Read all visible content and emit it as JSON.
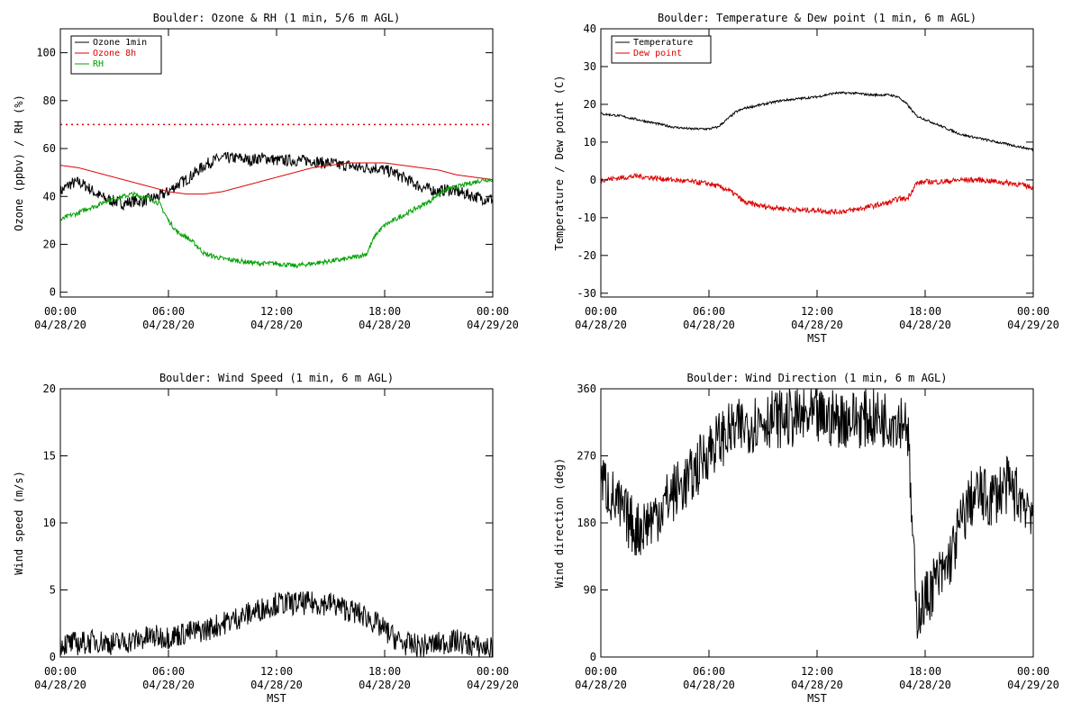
{
  "colors": {
    "ozone_1min": "#000000",
    "ozone_8h": "#dd0000",
    "rh": "#00a000",
    "temperature": "#000000",
    "dew_point": "#dd0000",
    "reference_line": "#dd0000"
  },
  "chart_data": [
    {
      "type": "line",
      "title": "Boulder: Ozone & RH (1 min, 5/6 m AGL)",
      "xlabel": "",
      "ylabel": "Ozone (ppbv) / RH (%)",
      "xlim": [
        0,
        24
      ],
      "ylim": [
        -2,
        110
      ],
      "yticks": [
        0,
        20,
        40,
        60,
        80,
        100
      ],
      "xticks": [
        {
          "value": 0,
          "time": "00:00",
          "date": "04/28/20"
        },
        {
          "value": 6,
          "time": "06:00",
          "date": "04/28/20"
        },
        {
          "value": 12,
          "time": "12:00",
          "date": "04/28/20"
        },
        {
          "value": 18,
          "time": "18:00",
          "date": "04/28/20"
        },
        {
          "value": 24,
          "time": "00:00",
          "date": "04/29/20"
        }
      ],
      "legend": "top-left",
      "reference_line": {
        "y": 70,
        "style": "dotted"
      },
      "series": [
        {
          "name": "Ozone 1min",
          "color": "#000000",
          "noise": 2.5,
          "x": [
            0,
            0.5,
            1,
            1.5,
            2,
            2.5,
            3,
            3.5,
            4,
            4.5,
            5,
            5.5,
            6,
            6.5,
            7,
            7.5,
            8,
            8.5,
            9,
            9.5,
            10,
            10.5,
            11,
            11.5,
            12,
            12.5,
            13,
            13.5,
            14,
            14.5,
            15,
            15.5,
            16,
            16.5,
            17,
            17.5,
            18,
            18.5,
            19,
            19.5,
            20,
            20.5,
            21,
            21.5,
            22,
            22.5,
            23,
            23.5,
            24
          ],
          "values": [
            42,
            45,
            46,
            44,
            41,
            39,
            38,
            37,
            38,
            38,
            39,
            40,
            42,
            45,
            47,
            50,
            53,
            55,
            56,
            56,
            56,
            55,
            56,
            56,
            55,
            55,
            55,
            55,
            55,
            54,
            54,
            53,
            53,
            52,
            52,
            52,
            51,
            50,
            48,
            46,
            44,
            43,
            42,
            43,
            42,
            41,
            40,
            39,
            39
          ]
        },
        {
          "name": "Ozone 8h",
          "color": "#dd0000",
          "noise": 0,
          "x": [
            0,
            1,
            2,
            3,
            4,
            5,
            6,
            7,
            8,
            9,
            10,
            11,
            12,
            13,
            14,
            15,
            16,
            17,
            18,
            19,
            20,
            21,
            22,
            23,
            24
          ],
          "values": [
            53,
            52,
            50,
            48,
            46,
            44,
            42,
            41,
            41,
            42,
            44,
            46,
            48,
            50,
            52,
            53,
            54,
            54,
            54,
            53,
            52,
            51,
            49,
            48,
            47
          ]
        },
        {
          "name": "RH",
          "color": "#00a000",
          "noise": 1,
          "x": [
            0,
            0.5,
            1,
            1.5,
            2,
            2.5,
            3,
            3.5,
            4,
            4.5,
            5,
            5.5,
            6,
            6.5,
            7,
            7.5,
            8,
            8.5,
            9,
            10,
            11,
            12,
            13,
            14,
            15,
            16,
            16.5,
            17,
            17.5,
            18,
            18.5,
            19,
            19.5,
            20,
            20.5,
            21,
            21.5,
            22,
            22.5,
            23,
            23.5,
            24
          ],
          "values": [
            30,
            32,
            33,
            35,
            36,
            38,
            39,
            40,
            41,
            40,
            39,
            37,
            30,
            25,
            23,
            20,
            16,
            15,
            14,
            13,
            12,
            12,
            11,
            12,
            13,
            14,
            15,
            16,
            24,
            28,
            30,
            32,
            34,
            36,
            38,
            41,
            43,
            44,
            45,
            46,
            47,
            47
          ]
        }
      ]
    },
    {
      "type": "line",
      "title": "Boulder: Temperature & Dew point (1 min, 6 m AGL)",
      "xlabel": "MST",
      "ylabel": "Temperature / Dew point (C)",
      "xlim": [
        0,
        24
      ],
      "ylim": [
        -31,
        40
      ],
      "yticks": [
        -30,
        -20,
        -10,
        0,
        10,
        20,
        30,
        40
      ],
      "xticks": [
        {
          "value": 0,
          "time": "00:00",
          "date": "04/28/20"
        },
        {
          "value": 6,
          "time": "06:00",
          "date": "04/28/20"
        },
        {
          "value": 12,
          "time": "12:00",
          "date": "04/28/20"
        },
        {
          "value": 18,
          "time": "18:00",
          "date": "04/28/20"
        },
        {
          "value": 24,
          "time": "00:00",
          "date": "04/29/20"
        }
      ],
      "legend": "top-left",
      "series": [
        {
          "name": "Temperature",
          "color": "#000000",
          "noise": 0.3,
          "x": [
            0,
            1,
            2,
            3,
            4,
            5,
            6,
            6.5,
            7,
            7.5,
            8,
            9,
            10,
            11,
            12,
            13,
            14,
            15,
            16,
            16.5,
            17,
            17.5,
            18,
            19,
            20,
            21,
            22,
            23,
            24
          ],
          "values": [
            17.5,
            17,
            16,
            15,
            14,
            13.5,
            13.5,
            14,
            16,
            18,
            19,
            20,
            21,
            21.5,
            22,
            23,
            23,
            22.5,
            22.5,
            22,
            20,
            17,
            16,
            14,
            12,
            11,
            10,
            9,
            8
          ]
        },
        {
          "name": "Dew point",
          "color": "#dd0000",
          "noise": 0.7,
          "x": [
            0,
            1,
            2,
            3,
            4,
            5,
            6,
            7,
            7.5,
            8,
            9,
            10,
            11,
            12,
            13,
            14,
            15,
            16,
            16.5,
            17,
            17.5,
            18,
            19,
            20,
            21,
            22,
            23,
            24
          ],
          "values": [
            0,
            0.5,
            1,
            0.5,
            0,
            -0.5,
            -1,
            -2.5,
            -4,
            -6,
            -7,
            -7.5,
            -8,
            -8,
            -8.5,
            -8,
            -7,
            -6,
            -5,
            -5,
            -1,
            -0.5,
            -0.5,
            0,
            0,
            -0.5,
            -1,
            -2
          ]
        }
      ]
    },
    {
      "type": "line",
      "title": "Boulder: Wind Speed (1 min, 6 m AGL)",
      "xlabel": "MST",
      "ylabel": "Wind speed (m/s)",
      "xlim": [
        0,
        24
      ],
      "ylim": [
        0,
        20
      ],
      "yticks": [
        0,
        5,
        10,
        15,
        20
      ],
      "xticks": [
        {
          "value": 0,
          "time": "00:00",
          "date": "04/28/20"
        },
        {
          "value": 6,
          "time": "06:00",
          "date": "04/28/20"
        },
        {
          "value": 12,
          "time": "12:00",
          "date": "04/28/20"
        },
        {
          "value": 18,
          "time": "18:00",
          "date": "04/28/20"
        },
        {
          "value": 24,
          "time": "00:00",
          "date": "04/29/20"
        }
      ],
      "series": [
        {
          "name": "",
          "color": "#000000",
          "noise": 0.9,
          "x": [
            0,
            1,
            2,
            3,
            4,
            5,
            6,
            7,
            8,
            9,
            10,
            11,
            12,
            13,
            14,
            15,
            16,
            17,
            18,
            19,
            20,
            21,
            22,
            23,
            24
          ],
          "values": [
            1,
            1,
            1.2,
            1,
            1.2,
            1.5,
            1.5,
            1.8,
            2,
            2.5,
            3,
            3.5,
            4,
            4,
            4,
            4,
            3.5,
            3,
            2,
            1,
            0.8,
            1,
            1.2,
            0.8,
            0.6
          ]
        }
      ]
    },
    {
      "type": "line",
      "title": "Boulder: Wind Direction (1 min, 6 m AGL)",
      "xlabel": "MST",
      "ylabel": "Wind direction (deg)",
      "xlim": [
        0,
        24
      ],
      "ylim": [
        0,
        360
      ],
      "yticks": [
        0,
        90,
        180,
        270,
        360
      ],
      "xticks": [
        {
          "value": 0,
          "time": "00:00",
          "date": "04/28/20"
        },
        {
          "value": 6,
          "time": "06:00",
          "date": "04/28/20"
        },
        {
          "value": 12,
          "time": "12:00",
          "date": "04/28/20"
        },
        {
          "value": 18,
          "time": "18:00",
          "date": "04/28/20"
        },
        {
          "value": 24,
          "time": "00:00",
          "date": "04/29/20"
        }
      ],
      "series": [
        {
          "name": "",
          "color": "#000000",
          "noise": 40,
          "x": [
            0,
            1,
            2,
            3,
            4,
            5,
            6,
            7,
            8,
            9,
            10,
            11,
            12,
            13,
            14,
            15,
            16,
            17,
            17.5,
            18,
            18.5,
            19,
            19.5,
            20,
            20.5,
            21,
            21.5,
            22,
            22.5,
            23,
            23.5,
            24
          ],
          "values": [
            240,
            200,
            170,
            190,
            220,
            240,
            280,
            300,
            310,
            320,
            320,
            320,
            320,
            320,
            320,
            320,
            320,
            320,
            60,
            75,
            100,
            110,
            140,
            180,
            210,
            220,
            210,
            220,
            230,
            220,
            210,
            200
          ]
        }
      ]
    }
  ]
}
